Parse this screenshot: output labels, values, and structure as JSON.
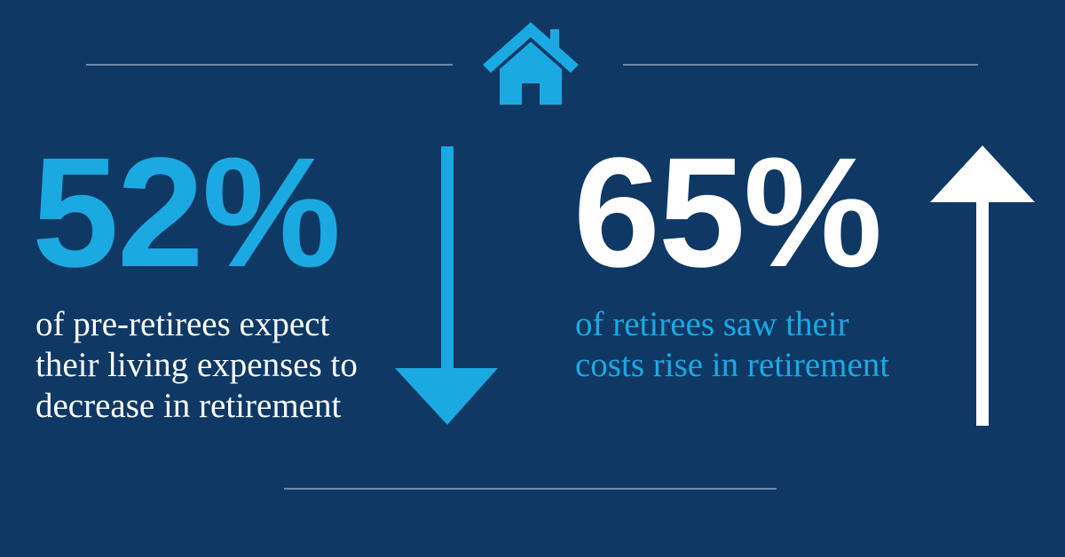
{
  "stats": [
    {
      "value": "52%",
      "description": [
        "of pre-retirees expect",
        "their living expenses to",
        "decrease in retirement"
      ]
    },
    {
      "value": "65%",
      "description": [
        "of retirees saw their",
        "costs rise in retirement"
      ]
    }
  ]
}
